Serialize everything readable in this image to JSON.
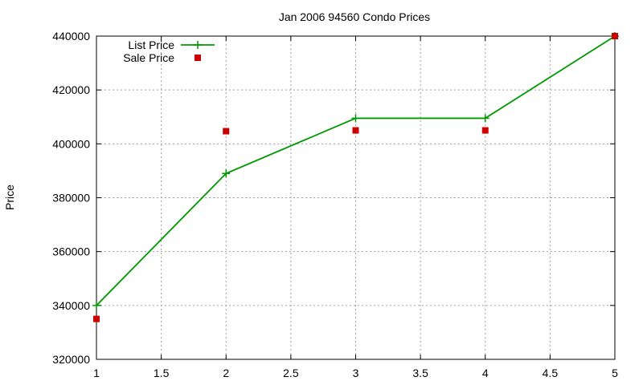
{
  "chart_data": {
    "type": "line",
    "title": "Jan 2006 94560 Condo Prices",
    "xlabel": "",
    "ylabel": "Price",
    "xlim": [
      1,
      5
    ],
    "ylim": [
      320000,
      440000
    ],
    "xticks": [
      "1",
      "1.5",
      "2",
      "2.5",
      "3",
      "3.5",
      "4",
      "4.5",
      "5"
    ],
    "yticks": [
      "320000",
      "340000",
      "360000",
      "380000",
      "400000",
      "420000",
      "440000"
    ],
    "grid": true,
    "legend_position": "top-left",
    "series": [
      {
        "name": "List Price",
        "style": "linespoints",
        "marker": "plus",
        "color": "#009900",
        "x": [
          1,
          2,
          3,
          4,
          5
        ],
        "y": [
          340000,
          389000,
          409500,
          409500,
          440000
        ]
      },
      {
        "name": "Sale Price",
        "style": "points",
        "marker": "square",
        "color": "#cc0000",
        "x": [
          1,
          2,
          3,
          4,
          5
        ],
        "y": [
          335000,
          404700,
          405000,
          405000,
          440000
        ]
      }
    ]
  }
}
